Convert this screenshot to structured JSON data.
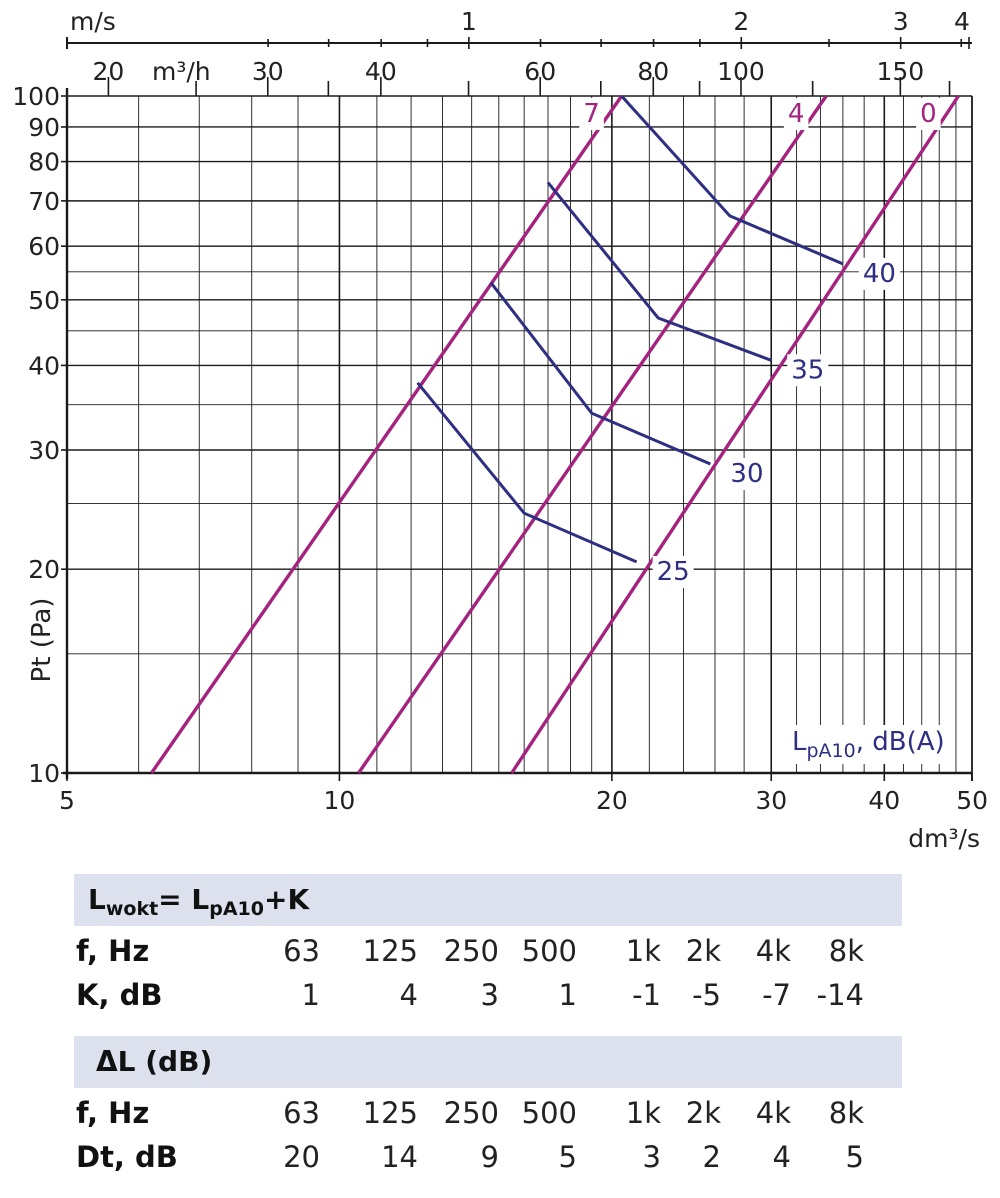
{
  "chart_data": {
    "type": "line",
    "x_unit": "dm³/s",
    "y_label": "Pt (Pa)",
    "x_scale": "log",
    "y_scale": "log",
    "xlim": [
      5,
      50
    ],
    "ylim": [
      10,
      100
    ],
    "x_ticks": [
      "5",
      "10",
      "20",
      "30",
      "40",
      "50"
    ],
    "x_tick_values": [
      5,
      10,
      20,
      30,
      40,
      50
    ],
    "y_ticks": [
      "10",
      "20",
      "30",
      "40",
      "50",
      "60",
      "70",
      "80",
      "90",
      "100"
    ],
    "y_tick_values": [
      10,
      20,
      30,
      40,
      50,
      60,
      70,
      80,
      90,
      100
    ],
    "top_axis_ms": {
      "unit": "m/s",
      "ticks": [
        "1",
        "2",
        "3",
        "4"
      ],
      "tick_values": [
        1,
        2,
        3,
        4
      ],
      "x_at_1ms": 13.9
    },
    "top_axis_m3h": {
      "unit": "m³/h",
      "ticks": [
        "20",
        "30",
        "40",
        "60",
        "80",
        "100",
        "150"
      ],
      "tick_values": [
        20,
        30,
        40,
        60,
        80,
        100,
        150
      ]
    },
    "grid": true,
    "pressure_lines": [
      {
        "label": "7",
        "points": [
          [
            6.2,
            10
          ],
          [
            20.5,
            100
          ]
        ]
      },
      {
        "label": "4",
        "points": [
          [
            10.5,
            10
          ],
          [
            34.5,
            100
          ]
        ]
      },
      {
        "label": "0",
        "points": [
          [
            15.5,
            10
          ],
          [
            48.3,
            100
          ]
        ]
      }
    ],
    "sound_lines_title": "L_pA10, dB(A)",
    "sound_lines": [
      {
        "label": "25",
        "points": [
          [
            12.2,
            37.7
          ],
          [
            16,
            24.2
          ],
          [
            21.3,
            20.5
          ]
        ]
      },
      {
        "label": "30",
        "points": [
          [
            14.7,
            53
          ],
          [
            19,
            34
          ],
          [
            25.7,
            28.6
          ]
        ]
      },
      {
        "label": "35",
        "points": [
          [
            17,
            74.5
          ],
          [
            22.5,
            47
          ],
          [
            30,
            40.7
          ]
        ]
      },
      {
        "label": "40",
        "points": [
          [
            20.5,
            100
          ],
          [
            27,
            66.5
          ],
          [
            36,
            56.5
          ]
        ]
      }
    ],
    "colors": {
      "pressure_lines": "#a3237e",
      "sound_lines": "#2e2f83",
      "grid": "#1a1a1a"
    }
  },
  "tables": [
    {
      "header_main": "L",
      "header_sub": "wokt",
      "header_eq": "= L",
      "header_sub2": "pA10",
      "header_tail": "+K",
      "rows": [
        {
          "label": "f, Hz",
          "values": [
            "63",
            "125",
            "250",
            "500",
            "1k",
            "2k",
            "4k",
            "8k"
          ]
        },
        {
          "label": "K, dB",
          "values": [
            "1",
            "4",
            "3",
            "1",
            "-1",
            "-5",
            "-7",
            "-14"
          ]
        }
      ]
    },
    {
      "header_main": "ΔL (dB)",
      "rows": [
        {
          "label": "f, Hz",
          "values": [
            "63",
            "125",
            "250",
            "500",
            "1k",
            "2k",
            "4k",
            "8k"
          ]
        },
        {
          "label": "Dt, dB",
          "values": [
            "20",
            "14",
            "9",
            "5",
            "3",
            "2",
            "4",
            "5"
          ]
        }
      ]
    }
  ]
}
